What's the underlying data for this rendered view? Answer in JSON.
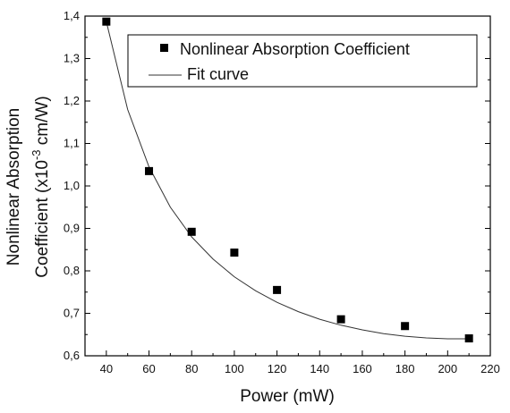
{
  "chart_data": {
    "type": "scatter",
    "xlabel": "Power (mW)",
    "ylabel": {
      "line1": "Nonlinear Absorption",
      "line2_prefix": "Coefficient (x10",
      "line2_sup": "-3",
      "line2_suffix": " cm/W)"
    },
    "xlim": [
      30,
      220
    ],
    "ylim": [
      0.6,
      1.4
    ],
    "x_ticks": [
      {
        "value": 40,
        "label": "40"
      },
      {
        "value": 60,
        "label": "60"
      },
      {
        "value": 80,
        "label": "80"
      },
      {
        "value": 100,
        "label": "100"
      },
      {
        "value": 120,
        "label": "120"
      },
      {
        "value": 140,
        "label": "140"
      },
      {
        "value": 160,
        "label": "160"
      },
      {
        "value": 180,
        "label": "180"
      },
      {
        "value": 200,
        "label": "200"
      },
      {
        "value": 220,
        "label": "220"
      }
    ],
    "y_ticks": [
      {
        "value": 0.6,
        "label": "0,6"
      },
      {
        "value": 0.7,
        "label": "0,7"
      },
      {
        "value": 0.8,
        "label": "0,8"
      },
      {
        "value": 0.9,
        "label": "0,9"
      },
      {
        "value": 1.0,
        "label": "1,0"
      },
      {
        "value": 1.1,
        "label": "1,1"
      },
      {
        "value": 1.2,
        "label": "1,2"
      },
      {
        "value": 1.3,
        "label": "1,3"
      },
      {
        "value": 1.4,
        "label": "1,4"
      }
    ],
    "grid": false,
    "legend_position": "top-right",
    "series": [
      {
        "name": "Nonlinear Absorption Coefficient",
        "type": "scatter",
        "marker": "square",
        "color": "#000000",
        "x": [
          40,
          60,
          80,
          100,
          120,
          150,
          180,
          210
        ],
        "y": [
          1.387,
          1.035,
          0.892,
          0.843,
          0.755,
          0.686,
          0.67,
          0.641
        ]
      },
      {
        "name": "Fit curve",
        "type": "line",
        "color": "#333333",
        "x": [
          40,
          50,
          60,
          70,
          80,
          90,
          100,
          110,
          120,
          130,
          140,
          150,
          160,
          170,
          180,
          190,
          200,
          210
        ],
        "y": [
          1.387,
          1.18,
          1.045,
          0.95,
          0.88,
          0.828,
          0.786,
          0.753,
          0.726,
          0.704,
          0.686,
          0.672,
          0.661,
          0.652,
          0.646,
          0.642,
          0.64,
          0.64
        ]
      }
    ]
  }
}
